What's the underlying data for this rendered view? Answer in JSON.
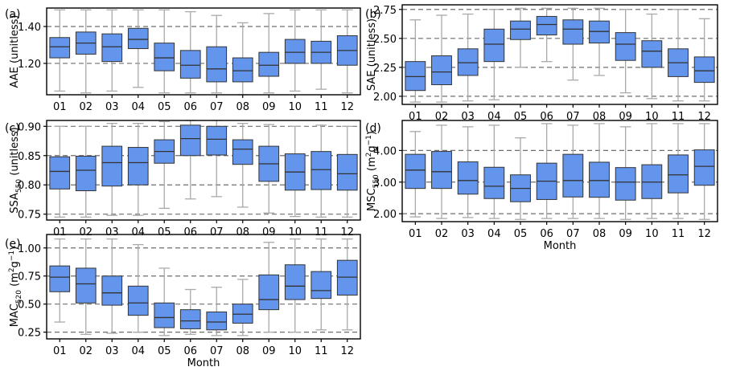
{
  "chart_data": [
    {
      "panel_label": "(a)",
      "type": "boxplot",
      "ylabel": "AAE (unitless)",
      "xlabel": "",
      "categories": [
        "01",
        "02",
        "03",
        "04",
        "05",
        "06",
        "07",
        "08",
        "09",
        "10",
        "11",
        "12"
      ],
      "ylim": [
        1.03,
        1.5
      ],
      "yticks": [
        1.2,
        1.4
      ],
      "ytick_labels": [
        "1.20",
        "1.40"
      ],
      "grid": "dashed horizontal",
      "series": [
        {
          "boxes": [
            {
              "whislo": 1.05,
              "q1": 1.23,
              "med": 1.29,
              "q3": 1.34,
              "whishi": 1.49
            },
            {
              "whislo": 1.04,
              "q1": 1.25,
              "med": 1.31,
              "q3": 1.37,
              "whishi": 1.49
            },
            {
              "whislo": 1.05,
              "q1": 1.21,
              "med": 1.29,
              "q3": 1.36,
              "whishi": 1.49
            },
            {
              "whislo": 1.07,
              "q1": 1.28,
              "med": 1.33,
              "q3": 1.39,
              "whishi": 1.49
            },
            {
              "whislo": 1.04,
              "q1": 1.16,
              "med": 1.23,
              "q3": 1.31,
              "whishi": 1.49
            },
            {
              "whislo": 1.04,
              "q1": 1.12,
              "med": 1.19,
              "q3": 1.27,
              "whishi": 1.48
            },
            {
              "whislo": 1.04,
              "q1": 1.1,
              "med": 1.17,
              "q3": 1.29,
              "whishi": 1.46
            },
            {
              "whislo": 1.03,
              "q1": 1.1,
              "med": 1.16,
              "q3": 1.23,
              "whishi": 1.42
            },
            {
              "whislo": 1.04,
              "q1": 1.13,
              "med": 1.19,
              "q3": 1.26,
              "whishi": 1.47
            },
            {
              "whislo": 1.05,
              "q1": 1.2,
              "med": 1.26,
              "q3": 1.33,
              "whishi": 1.49
            },
            {
              "whislo": 1.06,
              "q1": 1.2,
              "med": 1.26,
              "q3": 1.32,
              "whishi": 1.49
            },
            {
              "whislo": 1.04,
              "q1": 1.19,
              "med": 1.27,
              "q3": 1.35,
              "whishi": 1.49
            }
          ]
        }
      ]
    },
    {
      "panel_label": "(b)",
      "type": "boxplot",
      "ylabel": "SAE (unitless)",
      "xlabel": "",
      "categories": [
        "01",
        "02",
        "03",
        "04",
        "05",
        "06",
        "07",
        "08",
        "09",
        "10",
        "11",
        "12"
      ],
      "ylim": [
        1.93,
        2.79
      ],
      "yticks": [
        2.0,
        2.25,
        2.5,
        2.75
      ],
      "ytick_labels": [
        "2.00",
        "2.25",
        "2.50",
        "2.75"
      ],
      "grid": "dashed horizontal",
      "series": [
        {
          "boxes": [
            {
              "whislo": 1.95,
              "q1": 2.05,
              "med": 2.17,
              "q3": 2.3,
              "whishi": 2.66
            },
            {
              "whislo": 1.95,
              "q1": 2.1,
              "med": 2.21,
              "q3": 2.35,
              "whishi": 2.7
            },
            {
              "whislo": 1.96,
              "q1": 2.18,
              "med": 2.29,
              "q3": 2.41,
              "whishi": 2.71
            },
            {
              "whislo": 1.97,
              "q1": 2.3,
              "med": 2.45,
              "q3": 2.58,
              "whishi": 2.75
            },
            {
              "whislo": 2.25,
              "q1": 2.49,
              "med": 2.58,
              "q3": 2.65,
              "whishi": 2.76
            },
            {
              "whislo": 2.3,
              "q1": 2.53,
              "med": 2.62,
              "q3": 2.69,
              "whishi": 2.76
            },
            {
              "whislo": 2.14,
              "q1": 2.45,
              "med": 2.58,
              "q3": 2.66,
              "whishi": 2.76
            },
            {
              "whislo": 2.18,
              "q1": 2.46,
              "med": 2.56,
              "q3": 2.65,
              "whishi": 2.76
            },
            {
              "whislo": 2.03,
              "q1": 2.31,
              "med": 2.45,
              "q3": 2.55,
              "whishi": 2.75
            },
            {
              "whislo": 1.98,
              "q1": 2.25,
              "med": 2.39,
              "q3": 2.48,
              "whishi": 2.71
            },
            {
              "whislo": 1.96,
              "q1": 2.17,
              "med": 2.29,
              "q3": 2.41,
              "whishi": 2.75
            },
            {
              "whislo": 1.96,
              "q1": 2.12,
              "med": 2.22,
              "q3": 2.34,
              "whishi": 2.67
            }
          ]
        }
      ]
    },
    {
      "panel_label": "(c)",
      "type": "boxplot",
      "ylabel": "SSA550 (unitless)",
      "ylabel_main": "SSA",
      "ylabel_sub": "550",
      "ylabel_rest": " (unitless)",
      "xlabel": "",
      "categories": [
        "01",
        "02",
        "03",
        "04",
        "05",
        "06",
        "07",
        "08",
        "09",
        "10",
        "11",
        "12"
      ],
      "ylim": [
        0.74,
        0.91
      ],
      "yticks": [
        0.75,
        0.8,
        0.85,
        0.9
      ],
      "ytick_labels": [
        "0.75",
        "0.80",
        "0.85",
        "0.90"
      ],
      "grid": "dashed horizontal",
      "series": [
        {
          "boxes": [
            {
              "whislo": 0.745,
              "q1": 0.793,
              "med": 0.823,
              "q3": 0.848,
              "whishi": 0.9
            },
            {
              "whislo": 0.745,
              "q1": 0.79,
              "med": 0.825,
              "q3": 0.849,
              "whishi": 0.9
            },
            {
              "whislo": 0.748,
              "q1": 0.798,
              "med": 0.838,
              "q3": 0.866,
              "whishi": 0.905
            },
            {
              "whislo": 0.748,
              "q1": 0.8,
              "med": 0.838,
              "q3": 0.864,
              "whishi": 0.905
            },
            {
              "whislo": 0.76,
              "q1": 0.837,
              "med": 0.857,
              "q3": 0.877,
              "whishi": 0.908
            },
            {
              "whislo": 0.776,
              "q1": 0.85,
              "med": 0.879,
              "q3": 0.902,
              "whishi": 0.91
            },
            {
              "whislo": 0.78,
              "q1": 0.851,
              "med": 0.878,
              "q3": 0.9,
              "whishi": 0.91
            },
            {
              "whislo": 0.762,
              "q1": 0.835,
              "med": 0.861,
              "q3": 0.877,
              "whishi": 0.905
            },
            {
              "whislo": 0.752,
              "q1": 0.806,
              "med": 0.836,
              "q3": 0.866,
              "whishi": 0.903
            },
            {
              "whislo": 0.746,
              "q1": 0.791,
              "med": 0.822,
              "q3": 0.853,
              "whishi": 0.9
            },
            {
              "whislo": 0.745,
              "q1": 0.792,
              "med": 0.826,
              "q3": 0.857,
              "whishi": 0.902
            },
            {
              "whislo": 0.745,
              "q1": 0.791,
              "med": 0.819,
              "q3": 0.852,
              "whishi": 0.9
            }
          ]
        }
      ]
    },
    {
      "panel_label": "(d)",
      "type": "boxplot",
      "ylabel": "MSC550 (m2g−1)",
      "ylabel_main": "MSC",
      "ylabel_sub": "550",
      "ylabel_rest_a": " (m",
      "ylabel_sup1": "2",
      "ylabel_rest_b": "g",
      "ylabel_sup2": "−1",
      "ylabel_rest_c": ")",
      "xlabel": "Month",
      "categories": [
        "01",
        "02",
        "03",
        "04",
        "05",
        "06",
        "07",
        "08",
        "09",
        "10",
        "11",
        "12"
      ],
      "ylim": [
        1.75,
        4.95
      ],
      "yticks": [
        2.0,
        3.0,
        4.0
      ],
      "ytick_labels": [
        "2.00",
        "3.00",
        "4.00"
      ],
      "grid": "dashed horizontal",
      "series": [
        {
          "boxes": [
            {
              "whislo": 1.9,
              "q1": 2.8,
              "med": 3.38,
              "q3": 3.88,
              "whishi": 4.6
            },
            {
              "whislo": 1.85,
              "q1": 2.8,
              "med": 3.33,
              "q3": 3.97,
              "whishi": 4.8
            },
            {
              "whislo": 1.88,
              "q1": 2.62,
              "med": 3.05,
              "q3": 3.64,
              "whishi": 4.75
            },
            {
              "whislo": 1.85,
              "q1": 2.48,
              "med": 2.87,
              "q3": 3.47,
              "whishi": 4.8
            },
            {
              "whislo": 1.82,
              "q1": 2.38,
              "med": 2.8,
              "q3": 3.23,
              "whishi": 4.4
            },
            {
              "whislo": 1.85,
              "q1": 2.45,
              "med": 3.03,
              "q3": 3.6,
              "whishi": 4.85
            },
            {
              "whislo": 1.85,
              "q1": 2.53,
              "med": 3.05,
              "q3": 3.88,
              "whishi": 4.8
            },
            {
              "whislo": 1.85,
              "q1": 2.52,
              "med": 3.05,
              "q3": 3.63,
              "whishi": 4.85
            },
            {
              "whislo": 1.82,
              "q1": 2.43,
              "med": 3.0,
              "q3": 3.46,
              "whishi": 4.75
            },
            {
              "whislo": 1.85,
              "q1": 2.48,
              "med": 3.0,
              "q3": 3.55,
              "whishi": 4.85
            },
            {
              "whislo": 1.85,
              "q1": 2.66,
              "med": 3.23,
              "q3": 3.86,
              "whishi": 4.85
            },
            {
              "whislo": 1.82,
              "q1": 2.9,
              "med": 3.5,
              "q3": 4.02,
              "whishi": 4.85
            }
          ]
        }
      ]
    },
    {
      "panel_label": "(e)",
      "type": "boxplot",
      "ylabel": "MAC520 (m2g−1)",
      "ylabel_main": "MAC",
      "ylabel_sub": "520",
      "ylabel_rest_a": " (m",
      "ylabel_sup1": "2",
      "ylabel_rest_b": "g",
      "ylabel_sup2": "−1",
      "ylabel_rest_c": ")",
      "xlabel": "Month",
      "categories": [
        "01",
        "02",
        "03",
        "04",
        "05",
        "06",
        "07",
        "08",
        "09",
        "10",
        "11",
        "12"
      ],
      "ylim": [
        0.19,
        1.12
      ],
      "yticks": [
        0.25,
        0.5,
        0.75,
        1.0
      ],
      "ytick_labels": [
        "0.25",
        "0.50",
        "0.75",
        "1.00"
      ],
      "grid": "dashed horizontal",
      "series": [
        {
          "boxes": [
            {
              "whislo": 0.34,
              "q1": 0.61,
              "med": 0.74,
              "q3": 0.84,
              "whishi": 1.08
            },
            {
              "whislo": 0.23,
              "q1": 0.51,
              "med": 0.68,
              "q3": 0.82,
              "whishi": 1.08
            },
            {
              "whislo": 0.24,
              "q1": 0.49,
              "med": 0.6,
              "q3": 0.75,
              "whishi": 1.08
            },
            {
              "whislo": 0.25,
              "q1": 0.4,
              "med": 0.51,
              "q3": 0.66,
              "whishi": 1.03
            },
            {
              "whislo": 0.22,
              "q1": 0.29,
              "med": 0.38,
              "q3": 0.51,
              "whishi": 0.82
            },
            {
              "whislo": 0.23,
              "q1": 0.28,
              "med": 0.35,
              "q3": 0.45,
              "whishi": 0.63
            },
            {
              "whislo": 0.22,
              "q1": 0.27,
              "med": 0.34,
              "q3": 0.43,
              "whishi": 0.65
            },
            {
              "whislo": 0.22,
              "q1": 0.33,
              "med": 0.41,
              "q3": 0.5,
              "whishi": 0.72
            },
            {
              "whislo": 0.25,
              "q1": 0.45,
              "med": 0.54,
              "q3": 0.76,
              "whishi": 1.05
            },
            {
              "whislo": 0.25,
              "q1": 0.54,
              "med": 0.66,
              "q3": 0.85,
              "whishi": 1.08
            },
            {
              "whislo": 0.27,
              "q1": 0.55,
              "med": 0.62,
              "q3": 0.79,
              "whishi": 1.08
            },
            {
              "whislo": 0.27,
              "q1": 0.58,
              "med": 0.74,
              "q3": 0.89,
              "whishi": 1.08
            }
          ]
        }
      ]
    }
  ],
  "colors": {
    "box_fill": "#6495ed",
    "box_edge": "#333333",
    "whisker": "#a9a9a9",
    "median": "#333333",
    "grid": "#6e6e6e",
    "axis": "#000000"
  }
}
